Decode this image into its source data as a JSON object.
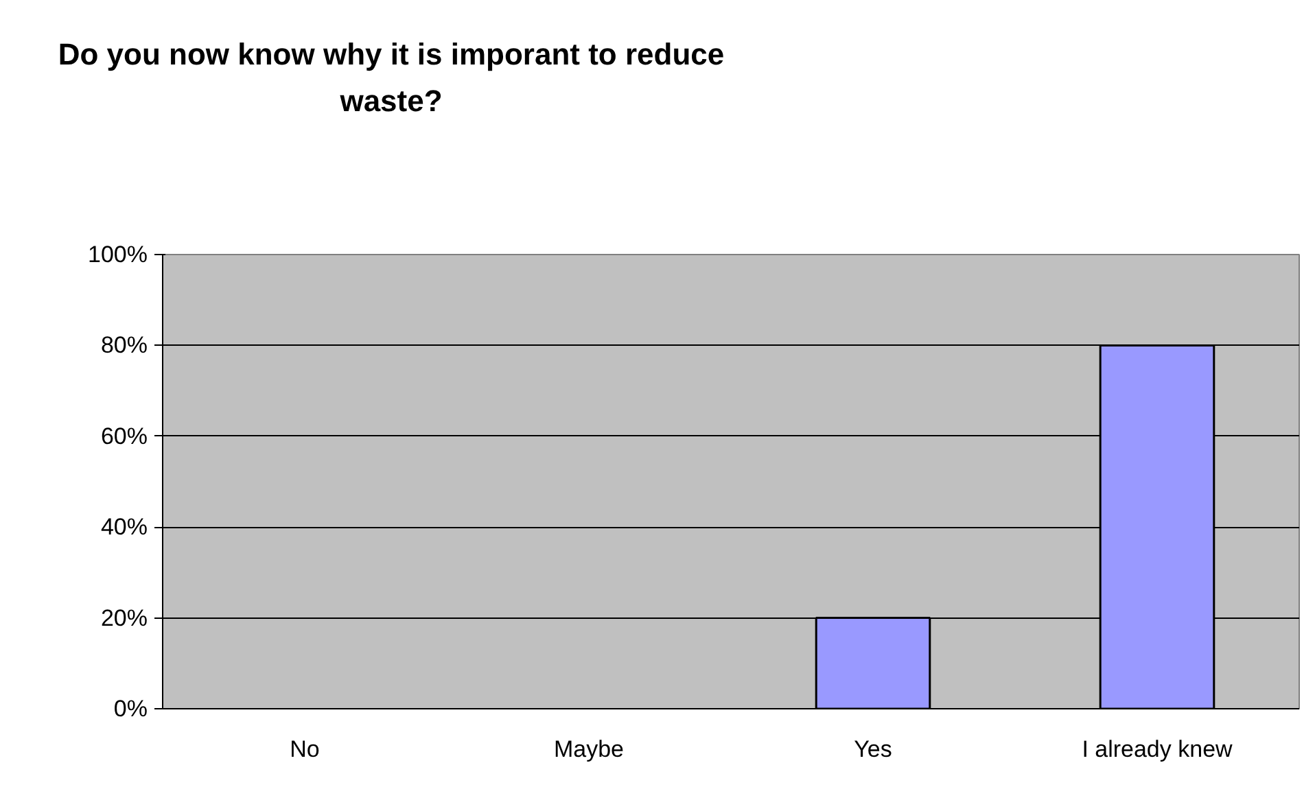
{
  "chart_data": {
    "type": "bar",
    "title": "Do you now know why it is imporant to reduce waste?",
    "categories": [
      "No",
      "Maybe",
      "Yes",
      "I already knew"
    ],
    "values": [
      0,
      0,
      20,
      80
    ],
    "color": "#9999ff",
    "ylim": [
      0,
      100
    ],
    "yticks": [
      {
        "value": 0,
        "label": "0%"
      },
      {
        "value": 20,
        "label": "20%"
      },
      {
        "value": 40,
        "label": "40%"
      },
      {
        "value": 60,
        "label": "60%"
      },
      {
        "value": 80,
        "label": "80%"
      },
      {
        "value": 100,
        "label": "100%"
      }
    ],
    "grid": "y"
  }
}
